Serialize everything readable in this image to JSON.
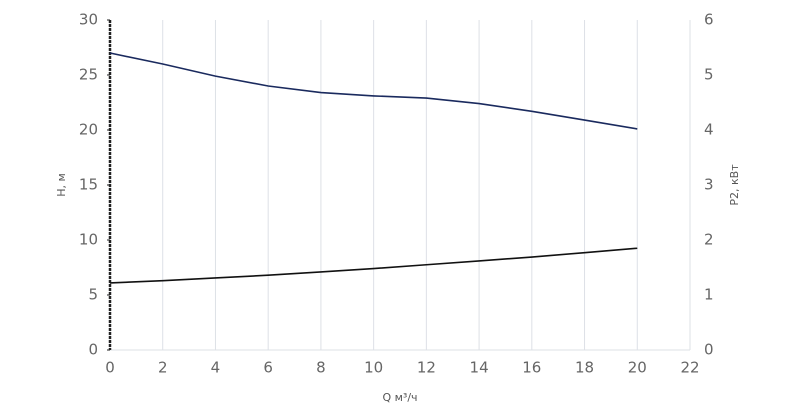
{
  "chart_data": {
    "type": "line",
    "x": [
      0,
      2,
      4,
      6,
      8,
      10,
      12,
      14,
      16,
      18,
      20
    ],
    "series": [
      {
        "name": "H",
        "color": "#1a2a5e",
        "values": [
          27,
          26,
          24.9,
          24,
          23.4,
          23.1,
          22.9,
          22.4,
          21.7,
          20.9,
          20.1
        ]
      },
      {
        "name": "P2",
        "color": "#111111",
        "axis": "y2",
        "values": [
          1.22,
          1.26,
          1.31,
          1.36,
          1.42,
          1.48,
          1.55,
          1.62,
          1.69,
          1.77,
          1.85
        ]
      }
    ],
    "xlabel": "Q м³/ч",
    "ylabel": "H, м",
    "y2label": "P2, кВт",
    "xlim": [
      0,
      22
    ],
    "xticks": [
      0,
      2,
      4,
      6,
      8,
      10,
      12,
      14,
      16,
      18,
      20,
      22
    ],
    "ylim": [
      0,
      30
    ],
    "yticks": [
      0,
      5,
      10,
      15,
      20,
      25,
      30
    ],
    "y2lim": [
      0,
      6
    ],
    "y2ticks": [
      0,
      1,
      2,
      3,
      4,
      5,
      6
    ],
    "grid": "x"
  }
}
